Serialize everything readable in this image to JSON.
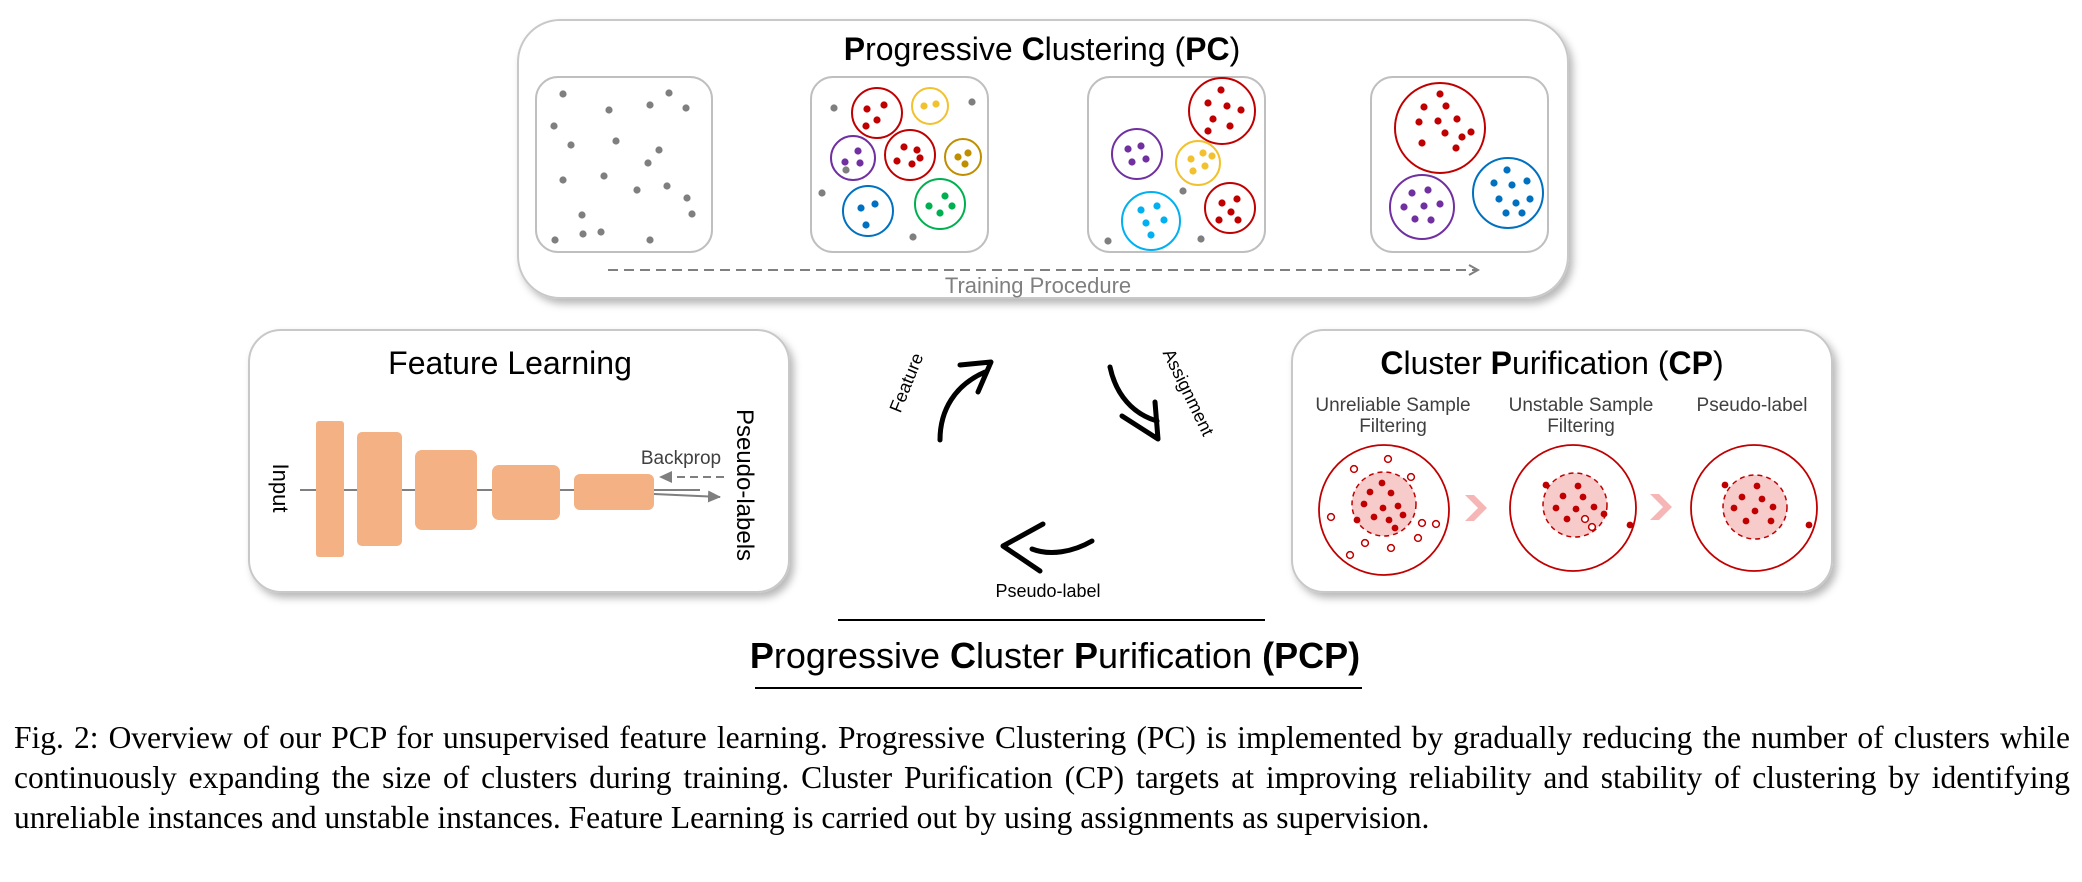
{
  "pc": {
    "title_parts": [
      "P",
      "rogressive ",
      "C",
      "lustering (",
      "PC",
      ")"
    ],
    "axis_label": "Training Procedure"
  },
  "feature_learning": {
    "title": "Feature Learning",
    "input_label": "Input",
    "backprop_label": "Backprop",
    "pseudo_labels_label": "Pseudo-labels"
  },
  "cp": {
    "title_parts": [
      "C",
      "luster ",
      "P",
      "urification (",
      "CP",
      ")"
    ],
    "step1_label": [
      "Unreliable Sample",
      "Filtering"
    ],
    "step2_label": [
      "Unstable Sample",
      "Filtering"
    ],
    "step3_label": "Pseudo-label"
  },
  "cycle": {
    "feature_label": "Feature",
    "assignment_label": "Assignment",
    "pseudo_label_label": "Pseudo-label"
  },
  "main_title_parts": [
    "P",
    "rogressive ",
    "C",
    "luster ",
    "P",
    "urification ",
    "(PCP)"
  ],
  "caption": "Fig. 2: Overview of our PCP for unsupervised feature learning. Progressive Clustering (PC) is implemented by gradually reducing the number of clusters while continuously expanding the size of clusters during training. Cluster Purification (CP) targets at improving reliability and stability of clustering by identifying unreliable instances and unstable instances. Feature Learning is carried out by using assignments as supervision.",
  "colors": {
    "point_gray": "#7f7f7f",
    "red": "#c00000",
    "yellow": "#f2c12e",
    "purple": "#7030a0",
    "gold": "#bf8f00",
    "blue": "#0070c0",
    "green": "#00b050",
    "cyan": "#00b0f0",
    "network_orange": "#f4b183",
    "pink_fill": "#f8cbcb"
  }
}
